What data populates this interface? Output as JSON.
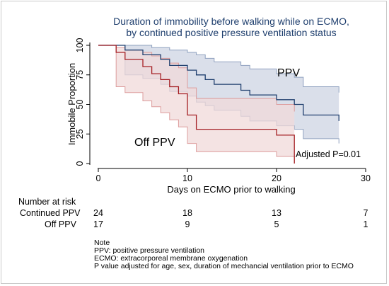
{
  "chart_data": {
    "type": "line",
    "title": "Duration of immobility before walking while on ECMO,",
    "subtitle": "by continued positive pressure ventilation status",
    "xlabel": "Days on ECMO prior to walking",
    "ylabel": "Immobile Proportion",
    "xlim": [
      0,
      30
    ],
    "ylim": [
      0,
      100
    ],
    "xticks": [
      0,
      10,
      20,
      30
    ],
    "yticks": [
      0,
      25,
      50,
      75,
      100
    ],
    "grid": false,
    "series": [
      {
        "name": "PPV",
        "color": "#1f3f6e",
        "band_fill": "#d3d9e6",
        "band_stroke": "#8fa1bf",
        "step_points": [
          [
            0,
            100
          ],
          [
            3,
            100
          ],
          [
            3,
            96
          ],
          [
            5,
            96
          ],
          [
            5,
            92
          ],
          [
            7,
            92
          ],
          [
            7,
            88
          ],
          [
            8,
            88
          ],
          [
            8,
            83
          ],
          [
            10,
            83
          ],
          [
            10,
            79
          ],
          [
            11,
            79
          ],
          [
            11,
            75
          ],
          [
            12,
            75
          ],
          [
            12,
            71
          ],
          [
            13,
            71
          ],
          [
            13,
            67
          ],
          [
            16,
            67
          ],
          [
            16,
            62
          ],
          [
            17,
            62
          ],
          [
            17,
            58
          ],
          [
            20,
            58
          ],
          [
            20,
            54
          ],
          [
            22,
            54
          ],
          [
            22,
            50
          ],
          [
            23,
            50
          ],
          [
            23,
            41
          ],
          [
            27,
            41
          ],
          [
            27,
            36
          ]
        ],
        "upper_band": [
          [
            0,
            100
          ],
          [
            6,
            100
          ],
          [
            6,
            98
          ],
          [
            8,
            98
          ],
          [
            8,
            96
          ],
          [
            10,
            96
          ],
          [
            10,
            94
          ],
          [
            11,
            94
          ],
          [
            11,
            92
          ],
          [
            12,
            92
          ],
          [
            12,
            89
          ],
          [
            13,
            89
          ],
          [
            13,
            86
          ],
          [
            16,
            86
          ],
          [
            16,
            83
          ],
          [
            17,
            83
          ],
          [
            17,
            80
          ],
          [
            20,
            80
          ],
          [
            20,
            76
          ],
          [
            22,
            76
          ],
          [
            22,
            73
          ],
          [
            23,
            73
          ],
          [
            23,
            65
          ],
          [
            27,
            65
          ],
          [
            27,
            60
          ]
        ],
        "lower_band": [
          [
            0,
            100
          ],
          [
            3,
            100
          ],
          [
            3,
            75
          ],
          [
            5,
            75
          ],
          [
            5,
            72
          ],
          [
            7,
            72
          ],
          [
            7,
            67
          ],
          [
            8,
            67
          ],
          [
            8,
            61
          ],
          [
            10,
            61
          ],
          [
            10,
            57
          ],
          [
            11,
            57
          ],
          [
            11,
            52
          ],
          [
            12,
            52
          ],
          [
            12,
            49
          ],
          [
            13,
            49
          ],
          [
            13,
            45
          ],
          [
            16,
            45
          ],
          [
            16,
            40
          ],
          [
            17,
            40
          ],
          [
            17,
            36
          ],
          [
            20,
            36
          ],
          [
            20,
            32
          ],
          [
            22,
            32
          ],
          [
            22,
            29
          ],
          [
            23,
            29
          ],
          [
            23,
            21
          ],
          [
            27,
            21
          ],
          [
            27,
            17
          ]
        ]
      },
      {
        "name": "Off PPV",
        "color": "#a51f24",
        "band_fill": "#f0dada",
        "band_stroke": "#dd9c9c",
        "step_points": [
          [
            0,
            100
          ],
          [
            2,
            100
          ],
          [
            2,
            94
          ],
          [
            3,
            94
          ],
          [
            3,
            88
          ],
          [
            5,
            88
          ],
          [
            5,
            82
          ],
          [
            6,
            82
          ],
          [
            6,
            76
          ],
          [
            7,
            76
          ],
          [
            7,
            71
          ],
          [
            8,
            71
          ],
          [
            8,
            65
          ],
          [
            9,
            65
          ],
          [
            9,
            59
          ],
          [
            10,
            59
          ],
          [
            10,
            41
          ],
          [
            11,
            41
          ],
          [
            11,
            29
          ],
          [
            20,
            29
          ],
          [
            20,
            24
          ],
          [
            22,
            24
          ],
          [
            22,
            0
          ]
        ],
        "upper_band": [
          [
            0,
            100
          ],
          [
            2,
            100
          ],
          [
            2,
            98
          ],
          [
            3,
            98
          ],
          [
            3,
            96
          ],
          [
            5,
            96
          ],
          [
            5,
            94
          ],
          [
            6,
            94
          ],
          [
            6,
            91
          ],
          [
            7,
            91
          ],
          [
            7,
            89
          ],
          [
            8,
            89
          ],
          [
            8,
            85
          ],
          [
            9,
            85
          ],
          [
            9,
            81
          ],
          [
            10,
            81
          ],
          [
            10,
            64
          ],
          [
            11,
            64
          ],
          [
            11,
            55
          ],
          [
            20,
            55
          ],
          [
            20,
            50
          ],
          [
            22,
            50
          ],
          [
            22,
            44
          ]
        ],
        "lower_band": [
          [
            0,
            100
          ],
          [
            2,
            100
          ],
          [
            2,
            65
          ],
          [
            3,
            65
          ],
          [
            3,
            60
          ],
          [
            5,
            60
          ],
          [
            5,
            53
          ],
          [
            6,
            53
          ],
          [
            6,
            48
          ],
          [
            7,
            48
          ],
          [
            7,
            43
          ],
          [
            8,
            43
          ],
          [
            8,
            37
          ],
          [
            9,
            37
          ],
          [
            9,
            31
          ],
          [
            10,
            31
          ],
          [
            10,
            17
          ],
          [
            11,
            17
          ],
          [
            11,
            10
          ],
          [
            20,
            10
          ],
          [
            20,
            6
          ],
          [
            22,
            6
          ],
          [
            22,
            0
          ]
        ]
      }
    ],
    "curve_labels": {
      "ppv": "PPV",
      "off_ppv": "Off PPV"
    },
    "annotation": "Adjusted P=0.01"
  },
  "risk_table": {
    "header": "Number at risk",
    "rows": [
      {
        "label": "Continued PPV",
        "values": [
          "24",
          "18",
          "13",
          "7"
        ]
      },
      {
        "label": "Off PPV",
        "values": [
          "17",
          "9",
          "5",
          "1"
        ]
      }
    ]
  },
  "notes": [
    "Note",
    "PPV: positive pressure ventilation",
    "ECMO: extracorporeal membrane oxygenation",
    "P value adjusted for age, sex, duration of mechancial ventilation prior to ECMO"
  ]
}
